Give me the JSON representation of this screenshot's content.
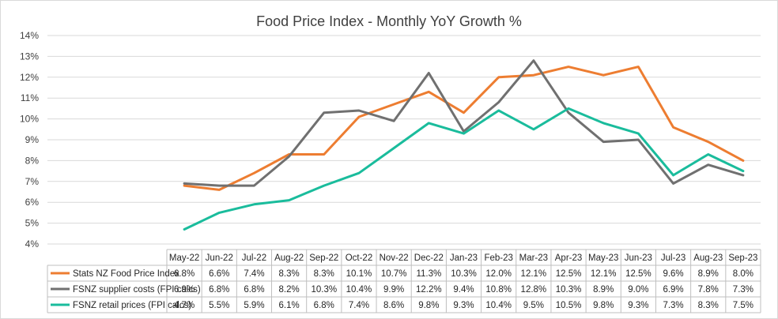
{
  "chart_data": {
    "type": "line",
    "title": "Food Price Index - Monthly YoY Growth %",
    "ylim": [
      4,
      14
    ],
    "y_ticks": [
      "4%",
      "5%",
      "6%",
      "7%",
      "8%",
      "9%",
      "10%",
      "11%",
      "12%",
      "13%",
      "14%"
    ],
    "grid": true,
    "legend": "data-table",
    "categories": [
      "May-22",
      "Jun-22",
      "Jul-22",
      "Aug-22",
      "Sep-22",
      "Oct-22",
      "Nov-22",
      "Dec-22",
      "Jan-23",
      "Feb-23",
      "Mar-23",
      "Apr-23",
      "May-23",
      "Jun-23",
      "Jul-23",
      "Aug-23",
      "Sep-23"
    ],
    "series": [
      {
        "name": "Stats NZ Food Price Index",
        "color": "#ED7D31",
        "values": [
          6.8,
          6.6,
          7.4,
          8.3,
          8.3,
          10.1,
          10.7,
          11.3,
          10.3,
          12.0,
          12.1,
          12.5,
          12.1,
          12.5,
          9.6,
          8.9,
          8.0
        ],
        "labels": [
          "6.8%",
          "6.6%",
          "7.4%",
          "8.3%",
          "8.3%",
          "10.1%",
          "10.7%",
          "11.3%",
          "10.3%",
          "12.0%",
          "12.1%",
          "12.5%",
          "12.1%",
          "12.5%",
          "9.6%",
          "8.9%",
          "8.0%"
        ]
      },
      {
        "name": "FSNZ supplier costs (FPI calcs)",
        "color": "#707070",
        "values": [
          6.9,
          6.8,
          6.8,
          8.2,
          10.3,
          10.4,
          9.9,
          12.2,
          9.4,
          10.8,
          12.8,
          10.3,
          8.9,
          9.0,
          6.9,
          7.8,
          7.3
        ],
        "labels": [
          "6.9%",
          "6.8%",
          "6.8%",
          "8.2%",
          "10.3%",
          "10.4%",
          "9.9%",
          "12.2%",
          "9.4%",
          "10.8%",
          "12.8%",
          "10.3%",
          "8.9%",
          "9.0%",
          "6.9%",
          "7.8%",
          "7.3%"
        ]
      },
      {
        "name": "FSNZ retail prices (FPI calcs)",
        "color": "#1ABC9C",
        "values": [
          4.7,
          5.5,
          5.9,
          6.1,
          6.8,
          7.4,
          8.6,
          9.8,
          9.3,
          10.4,
          9.5,
          10.5,
          9.8,
          9.3,
          7.3,
          8.3,
          7.5
        ],
        "labels": [
          "4.7%",
          "5.5%",
          "5.9%",
          "6.1%",
          "6.8%",
          "7.4%",
          "8.6%",
          "9.8%",
          "9.3%",
          "10.4%",
          "9.5%",
          "10.5%",
          "9.8%",
          "9.3%",
          "7.3%",
          "8.3%",
          "7.5%"
        ]
      }
    ]
  }
}
